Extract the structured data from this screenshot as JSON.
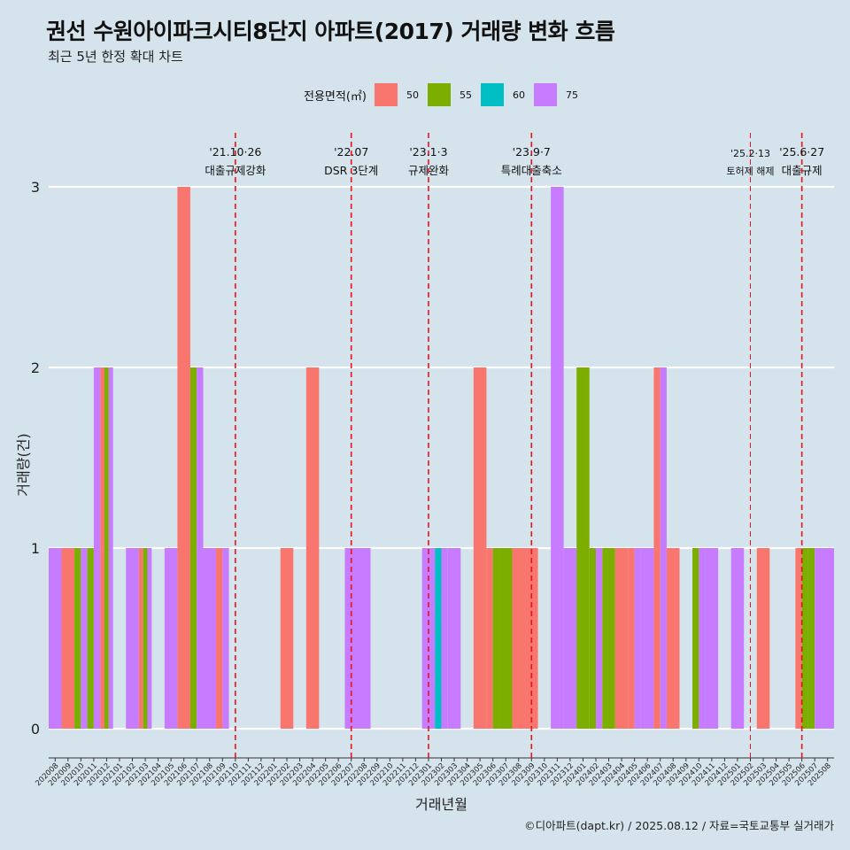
{
  "title": "권선 수원아이파크시티8단지 아파트(2017) 거래량 변화 흐름",
  "subtitle": "최근 5년 한정 확대 차트",
  "caption": "©디아파트(dapt.kr) / 2025.08.12 / 자료=국토교통부 실거래가",
  "legend": {
    "title": "전용면적(㎡)",
    "items": [
      {
        "label": "50",
        "color": "#f8766d"
      },
      {
        "label": "55",
        "color": "#7cae00"
      },
      {
        "label": "60",
        "color": "#00bfc4"
      },
      {
        "label": "75",
        "color": "#c77cff"
      }
    ]
  },
  "chart_data": {
    "type": "bar",
    "xlabel": "거래년월",
    "ylabel": "거래량(건)",
    "ylim": [
      0,
      3
    ],
    "yticks": [
      0,
      1,
      2,
      3
    ],
    "categories": [
      "202008",
      "202009",
      "202010",
      "202011",
      "202012",
      "202101",
      "202102",
      "202103",
      "202104",
      "202105",
      "202106",
      "202107",
      "202108",
      "202109",
      "202110",
      "202111",
      "202112",
      "202201",
      "202202",
      "202203",
      "202204",
      "202205",
      "202206",
      "202207",
      "202208",
      "202209",
      "202210",
      "202211",
      "202212",
      "202301",
      "202302",
      "202303",
      "202304",
      "202305",
      "202306",
      "202307",
      "202308",
      "202309",
      "202310",
      "202311",
      "202312",
      "202401",
      "202402",
      "202403",
      "202404",
      "202405",
      "202406",
      "202407",
      "202408",
      "202409",
      "202410",
      "202411",
      "202412",
      "202501",
      "202502",
      "202503",
      "202504",
      "202505",
      "202506",
      "202507",
      "202508"
    ],
    "bars": [
      {
        "month": "202008",
        "segments": [
          {
            "area": "75",
            "count": 1
          }
        ]
      },
      {
        "month": "202009",
        "segments": [
          {
            "area": "50",
            "count": 1
          }
        ]
      },
      {
        "month": "202010",
        "segments": [
          {
            "area": "55",
            "count": 1
          },
          {
            "area": "75",
            "count": 1
          }
        ]
      },
      {
        "month": "202011",
        "segments": [
          {
            "area": "55",
            "count": 1
          },
          {
            "area": "75",
            "count": 2
          }
        ]
      },
      {
        "month": "202012",
        "segments": [
          {
            "area": "50",
            "count": 2
          },
          {
            "area": "55",
            "count": 2
          },
          {
            "area": "75",
            "count": 2
          }
        ]
      },
      {
        "month": "202102",
        "segments": [
          {
            "area": "75",
            "count": 1
          }
        ]
      },
      {
        "month": "202103",
        "segments": [
          {
            "area": "50",
            "count": 1
          },
          {
            "area": "55",
            "count": 1
          },
          {
            "area": "75",
            "count": 1
          }
        ]
      },
      {
        "month": "202105",
        "segments": [
          {
            "area": "75",
            "count": 1
          }
        ]
      },
      {
        "month": "202106",
        "segments": [
          {
            "area": "50",
            "count": 3
          }
        ]
      },
      {
        "month": "202107",
        "segments": [
          {
            "area": "55",
            "count": 2
          },
          {
            "area": "75",
            "count": 2
          }
        ]
      },
      {
        "month": "202108",
        "segments": [
          {
            "area": "75",
            "count": 1
          }
        ]
      },
      {
        "month": "202109",
        "segments": [
          {
            "area": "50",
            "count": 1
          },
          {
            "area": "75",
            "count": 1
          }
        ]
      },
      {
        "month": "202202",
        "segments": [
          {
            "area": "50",
            "count": 1
          }
        ]
      },
      {
        "month": "202204",
        "segments": [
          {
            "area": "50",
            "count": 2
          }
        ]
      },
      {
        "month": "202207",
        "segments": [
          {
            "area": "75",
            "count": 1
          }
        ]
      },
      {
        "month": "202208",
        "segments": [
          {
            "area": "75",
            "count": 1
          }
        ]
      },
      {
        "month": "202301",
        "segments": [
          {
            "area": "75",
            "count": 1
          }
        ]
      },
      {
        "month": "202302",
        "segments": [
          {
            "area": "60",
            "count": 1
          },
          {
            "area": "75",
            "count": 1
          }
        ]
      },
      {
        "month": "202303",
        "segments": [
          {
            "area": "75",
            "count": 1
          }
        ]
      },
      {
        "month": "202305",
        "segments": [
          {
            "area": "50",
            "count": 2
          }
        ]
      },
      {
        "month": "202306",
        "segments": [
          {
            "area": "50",
            "count": 1
          },
          {
            "area": "55",
            "count": 1
          }
        ]
      },
      {
        "month": "202307",
        "segments": [
          {
            "area": "55",
            "count": 1
          }
        ]
      },
      {
        "month": "202308",
        "segments": [
          {
            "area": "50",
            "count": 1
          }
        ]
      },
      {
        "month": "202309",
        "segments": [
          {
            "area": "50",
            "count": 1
          }
        ]
      },
      {
        "month": "202311",
        "segments": [
          {
            "area": "75",
            "count": 3
          }
        ]
      },
      {
        "month": "202312",
        "segments": [
          {
            "area": "75",
            "count": 1
          }
        ]
      },
      {
        "month": "202401",
        "segments": [
          {
            "area": "55",
            "count": 2
          }
        ]
      },
      {
        "month": "202402",
        "segments": [
          {
            "area": "55",
            "count": 1
          },
          {
            "area": "75",
            "count": 1
          }
        ]
      },
      {
        "month": "202403",
        "segments": [
          {
            "area": "55",
            "count": 1
          }
        ]
      },
      {
        "month": "202404",
        "segments": [
          {
            "area": "50",
            "count": 1
          }
        ]
      },
      {
        "month": "202405",
        "segments": [
          {
            "area": "50",
            "count": 1
          },
          {
            "area": "75",
            "count": 1
          }
        ]
      },
      {
        "month": "202406",
        "segments": [
          {
            "area": "75",
            "count": 1
          }
        ]
      },
      {
        "month": "202407",
        "segments": [
          {
            "area": "50",
            "count": 2
          },
          {
            "area": "75",
            "count": 2
          }
        ]
      },
      {
        "month": "202408",
        "segments": [
          {
            "area": "50",
            "count": 1
          }
        ]
      },
      {
        "month": "202410",
        "segments": [
          {
            "area": "55",
            "count": 1
          },
          {
            "area": "75",
            "count": 1
          }
        ]
      },
      {
        "month": "202411",
        "segments": [
          {
            "area": "75",
            "count": 1
          }
        ]
      },
      {
        "month": "202501",
        "segments": [
          {
            "area": "75",
            "count": 1
          }
        ]
      },
      {
        "month": "202503",
        "segments": [
          {
            "area": "50",
            "count": 1
          }
        ]
      },
      {
        "month": "202506",
        "segments": [
          {
            "area": "50",
            "count": 1
          },
          {
            "area": "55",
            "count": 1
          }
        ]
      },
      {
        "month": "202507",
        "segments": [
          {
            "area": "55",
            "count": 1
          },
          {
            "area": "75",
            "count": 1
          }
        ]
      },
      {
        "month": "202508",
        "segments": [
          {
            "area": "75",
            "count": 1
          }
        ]
      }
    ],
    "events": [
      {
        "x": 14.5,
        "date": "'21.10·26",
        "label": "대출규제강화",
        "small": false
      },
      {
        "x": 23.5,
        "date": "'22.07",
        "label": "DSR 3단계",
        "small": false
      },
      {
        "x": 29.5,
        "date": "'23.1·3",
        "label": "규제완화",
        "small": false
      },
      {
        "x": 37.5,
        "date": "'23.9·7",
        "label": "특례대출축소",
        "small": false
      },
      {
        "x": 54.5,
        "date": "'25.2·13",
        "label": "토허제 해제",
        "small": true
      },
      {
        "x": 58.5,
        "date": "'25.6·27",
        "label": "대출규제",
        "small": false
      }
    ]
  }
}
